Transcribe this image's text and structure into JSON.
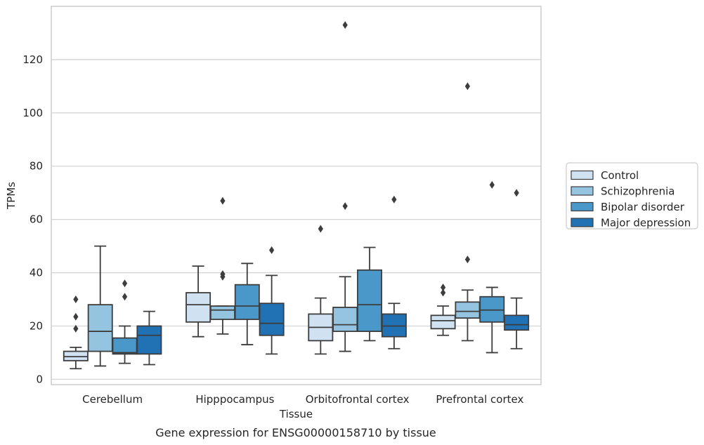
{
  "caption": "Gene expression for ENSG00000158710 by tissue",
  "chart_data": {
    "type": "box",
    "xlabel": "Tissue",
    "ylabel": "TPMs",
    "ylim": [
      -2,
      140
    ],
    "yticks": [
      0,
      20,
      40,
      60,
      80,
      100,
      120
    ],
    "grid": "horizontal",
    "legend_position": "right",
    "categories": [
      "Cerebellum",
      "Hipppocampus",
      "Orbitofrontal cortex",
      "Prefrontal cortex"
    ],
    "series": [
      {
        "name": "Control",
        "color": "#d0e1f2",
        "boxes": [
          {
            "whislo": 4,
            "q1": 7,
            "med": 8.5,
            "q3": 10.5,
            "whishi": 12,
            "fliers": [
              19,
              23.5,
              30
            ]
          },
          {
            "whislo": 16,
            "q1": 21.5,
            "med": 28,
            "q3": 32.5,
            "whishi": 42.5,
            "fliers": []
          },
          {
            "whislo": 9.5,
            "q1": 14.5,
            "med": 19.5,
            "q3": 24.5,
            "whishi": 30.5,
            "fliers": [
              56.5
            ]
          },
          {
            "whislo": 16.5,
            "q1": 19,
            "med": 22,
            "q3": 24,
            "whishi": 27.5,
            "fliers": [
              32.5,
              34.5
            ]
          }
        ]
      },
      {
        "name": "Schizophrenia",
        "color": "#94c4df",
        "boxes": [
          {
            "whislo": 5,
            "q1": 10.5,
            "med": 18,
            "q3": 28,
            "whishi": 50,
            "fliers": []
          },
          {
            "whislo": 17,
            "q1": 22.5,
            "med": 26,
            "q3": 27.5,
            "whishi": 27.5,
            "fliers": [
              38.5,
              39.5,
              67
            ]
          },
          {
            "whislo": 10.5,
            "q1": 18,
            "med": 20.5,
            "q3": 27,
            "whishi": 38.5,
            "fliers": [
              65,
              133
            ]
          },
          {
            "whislo": 14.5,
            "q1": 23,
            "med": 25.5,
            "q3": 29,
            "whishi": 33.5,
            "fliers": [
              45,
              110
            ]
          }
        ]
      },
      {
        "name": "Bipolar disorder",
        "color": "#4a98c9",
        "boxes": [
          {
            "whislo": 6,
            "q1": 9.5,
            "med": 10,
            "q3": 15.5,
            "whishi": 20,
            "fliers": [
              31,
              36
            ]
          },
          {
            "whislo": 13,
            "q1": 22.5,
            "med": 27.5,
            "q3": 35.5,
            "whishi": 43.5,
            "fliers": []
          },
          {
            "whislo": 14.5,
            "q1": 18,
            "med": 28,
            "q3": 41,
            "whishi": 49.5,
            "fliers": []
          },
          {
            "whislo": 10,
            "q1": 21.5,
            "med": 26,
            "q3": 31,
            "whishi": 34.5,
            "fliers": [
              73
            ]
          }
        ]
      },
      {
        "name": "Major depression",
        "color": "#2171b5",
        "boxes": [
          {
            "whislo": 5.5,
            "q1": 9.5,
            "med": 16.5,
            "q3": 20,
            "whishi": 25.5,
            "fliers": []
          },
          {
            "whislo": 9.5,
            "q1": 16.5,
            "med": 21,
            "q3": 28.5,
            "whishi": 39,
            "fliers": [
              48.5
            ]
          },
          {
            "whislo": 11.5,
            "q1": 16,
            "med": 20,
            "q3": 24.5,
            "whishi": 28.5,
            "fliers": [
              67.5
            ]
          },
          {
            "whislo": 11.5,
            "q1": 18.5,
            "med": 20.5,
            "q3": 24,
            "whishi": 30.5,
            "fliers": [
              70
            ]
          }
        ]
      }
    ]
  }
}
